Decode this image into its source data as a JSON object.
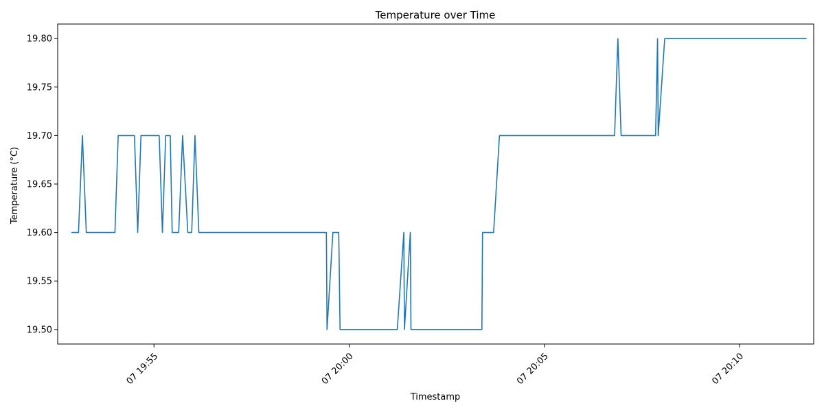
{
  "chart_data": {
    "type": "line",
    "title": "Temperature over Time",
    "xlabel": "Timestamp",
    "ylabel": "Temperature (°C)",
    "xlim": [
      "07 19:52:32",
      "07 20:11:54"
    ],
    "ylim": [
      19.485,
      19.815
    ],
    "x_ticks": [
      {
        "value": "07 19:55:00",
        "label": "07 19:55"
      },
      {
        "value": "07 20:00:00",
        "label": "07 20:00"
      },
      {
        "value": "07 20:05:00",
        "label": "07 20:05"
      },
      {
        "value": "07 20:10:00",
        "label": "07 20:10"
      }
    ],
    "y_ticks": [
      {
        "value": 19.5,
        "label": "19.50"
      },
      {
        "value": 19.55,
        "label": "19.55"
      },
      {
        "value": 19.6,
        "label": "19.60"
      },
      {
        "value": 19.65,
        "label": "19.65"
      },
      {
        "value": 19.7,
        "label": "19.70"
      },
      {
        "value": 19.75,
        "label": "19.75"
      },
      {
        "value": 19.8,
        "label": "19.80"
      }
    ],
    "grid": false,
    "color": "#1f77b4",
    "series": [
      {
        "x": [
          "07 19:52:53",
          "07 19:53:04",
          "07 19:53:10",
          "07 19:53:16",
          "07 19:54:00",
          "07 19:54:05",
          "07 19:54:30",
          "07 19:54:35",
          "07 19:54:40",
          "07 19:55:08",
          "07 19:55:13",
          "07 19:55:18",
          "07 19:55:25",
          "07 19:55:28",
          "07 19:55:38",
          "07 19:55:44",
          "07 19:55:52",
          "07 19:55:58",
          "07 19:56:03",
          "07 19:56:09",
          "07 19:59:25",
          "07 19:59:26",
          "07 19:59:35",
          "07 19:59:44",
          "07 19:59:46",
          "07 20:01:14",
          "07 20:01:24",
          "07 20:01:25",
          "07 20:01:34",
          "07 20:01:35",
          "07 20:03:24",
          "07 20:03:25",
          "07 20:03:42",
          "07 20:03:51",
          "07 20:06:48",
          "07 20:06:53",
          "07 20:06:58",
          "07 20:07:51",
          "07 20:07:54",
          "07 20:07:55",
          "07 20:08:05",
          "07 20:11:43"
        ],
        "y": [
          19.6,
          19.6,
          19.7,
          19.6,
          19.6,
          19.7,
          19.7,
          19.6,
          19.7,
          19.7,
          19.6,
          19.7,
          19.7,
          19.6,
          19.6,
          19.7,
          19.6,
          19.6,
          19.7,
          19.6,
          19.6,
          19.5,
          19.6,
          19.6,
          19.5,
          19.5,
          19.6,
          19.5,
          19.6,
          19.5,
          19.5,
          19.6,
          19.6,
          19.7,
          19.7,
          19.8,
          19.7,
          19.7,
          19.8,
          19.7,
          19.8,
          19.8
        ]
      }
    ]
  }
}
